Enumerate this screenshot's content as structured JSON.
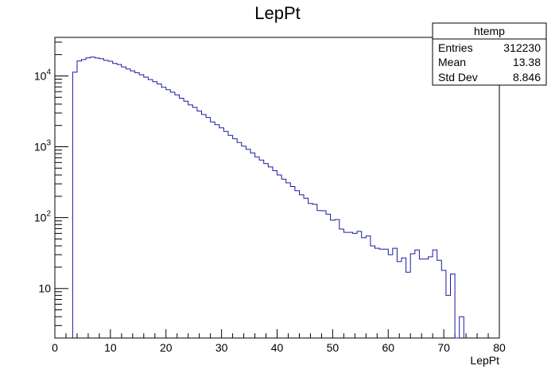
{
  "chart_data": {
    "type": "histogram",
    "title": "LepPt",
    "xlabel": "LepPt",
    "ylabel": "",
    "xlim": [
      0,
      80
    ],
    "ylim": [
      2,
      35000
    ],
    "y_scale": "log",
    "grid": false,
    "line_color": "#1a1aa0",
    "bin_width": 0.8,
    "x_ticks": [
      0,
      10,
      20,
      30,
      40,
      50,
      60,
      70,
      80
    ],
    "x_tick_labels": [
      "0",
      "10",
      "20",
      "30",
      "40",
      "50",
      "60",
      "70",
      "80"
    ],
    "y_ticks": [
      10,
      100,
      1000,
      10000
    ],
    "y_tick_labels": [
      {
        "base": "10",
        "exp": ""
      },
      {
        "base": "10",
        "exp": "2"
      },
      {
        "base": "10",
        "exp": "3"
      },
      {
        "base": "10",
        "exp": "4"
      }
    ],
    "x": [
      3.2,
      4.0,
      4.8,
      5.6,
      6.4,
      7.2,
      8.0,
      8.8,
      9.6,
      10.4,
      11.2,
      12.0,
      12.8,
      13.6,
      14.4,
      15.2,
      16.0,
      16.8,
      17.6,
      18.4,
      19.2,
      20.0,
      20.8,
      21.6,
      22.4,
      23.2,
      24.0,
      24.8,
      25.6,
      26.4,
      27.2,
      28.0,
      28.8,
      29.6,
      30.4,
      31.2,
      32.0,
      32.8,
      33.6,
      34.4,
      35.2,
      36.0,
      36.8,
      37.6,
      38.4,
      39.2,
      40.0,
      40.8,
      41.6,
      42.4,
      43.2,
      44.0,
      44.8,
      45.6,
      46.4,
      47.2,
      48.0,
      48.8,
      49.6,
      50.4,
      51.2,
      52.0,
      52.8,
      53.6,
      54.4,
      55.2,
      56.0,
      56.8,
      57.6,
      58.4,
      59.2,
      60.0,
      60.8,
      61.6,
      62.4,
      63.2,
      64.0,
      64.8,
      65.6,
      66.4,
      67.2,
      68.0,
      68.8,
      69.6,
      70.4,
      71.2,
      72.0,
      72.8
    ],
    "values": [
      11300,
      16300,
      17000,
      18000,
      18500,
      17900,
      17500,
      16600,
      16100,
      15000,
      14500,
      13400,
      12500,
      11800,
      11100,
      10400,
      9600,
      8900,
      8300,
      7700,
      6900,
      6400,
      5900,
      5400,
      4850,
      4400,
      3900,
      3600,
      3200,
      2850,
      2600,
      2250,
      2050,
      1850,
      1650,
      1450,
      1300,
      1150,
      1020,
      920,
      820,
      720,
      650,
      580,
      520,
      460,
      400,
      350,
      310,
      275,
      240,
      210,
      188,
      158,
      154,
      126,
      125,
      112,
      92,
      94,
      69,
      62,
      62,
      60,
      64,
      52,
      55,
      40,
      37,
      36,
      36,
      30,
      37,
      24,
      27,
      17,
      31,
      35,
      26,
      26,
      28,
      35,
      25,
      18,
      8,
      16,
      0,
      4
    ]
  },
  "stats_box": {
    "title": "htemp",
    "rows": [
      {
        "label": "Entries",
        "value": "312230"
      },
      {
        "label": "Mean",
        "value": "13.38"
      },
      {
        "label": "Std Dev",
        "value": "8.846"
      }
    ]
  }
}
